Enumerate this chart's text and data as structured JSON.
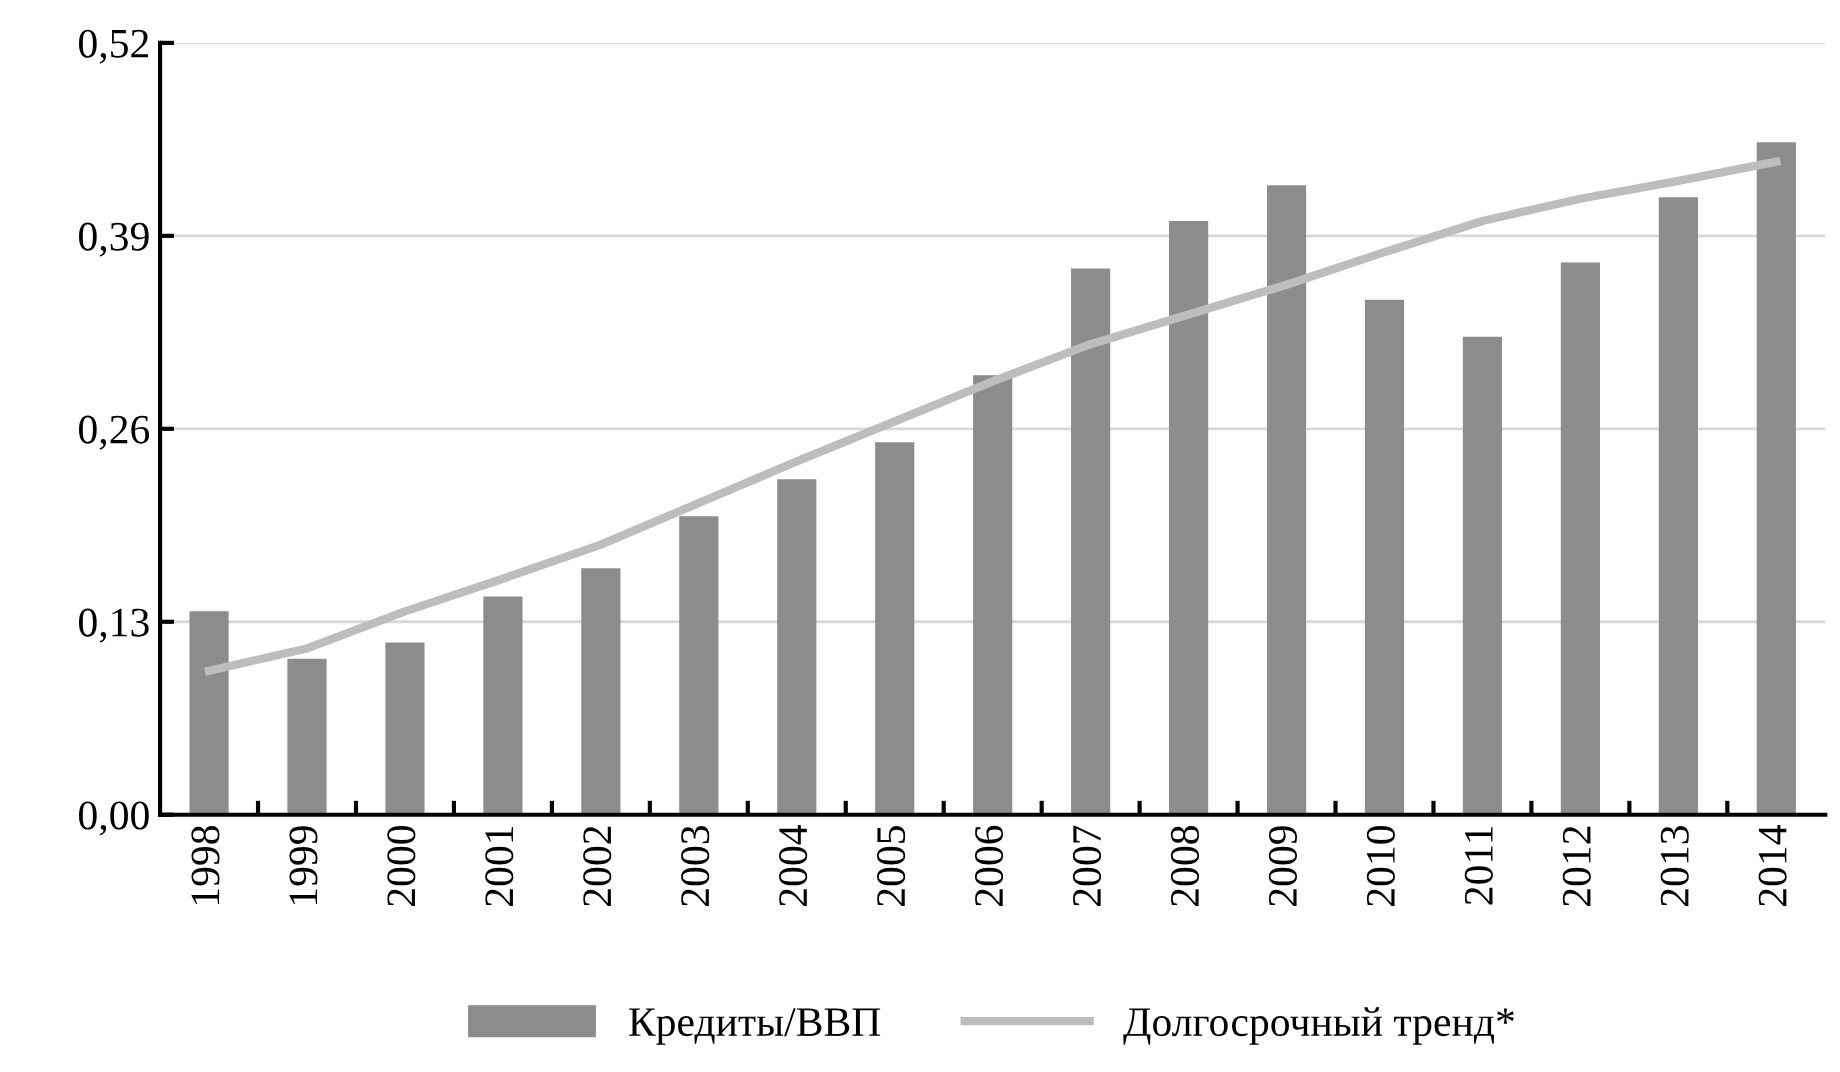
{
  "chart_data": {
    "type": "bar",
    "categories": [
      "1998",
      "1999",
      "2000",
      "2001",
      "2002",
      "2003",
      "2004",
      "2005",
      "2006",
      "2007",
      "2008",
      "2009",
      "2010",
      "2011",
      "2012",
      "2013",
      "2014"
    ],
    "series": [
      {
        "name": "Кредиты/ВВП",
        "color": "#8c8c8c",
        "values": [
          0.137,
          0.105,
          0.116,
          0.147,
          0.166,
          0.201,
          0.226,
          0.251,
          0.296,
          0.368,
          0.4,
          0.424,
          0.347,
          0.322,
          0.372,
          0.416,
          0.453
        ]
      },
      {
        "name": "Долгосрочный тренд*",
        "type": "line",
        "color": "#bdbdbd",
        "values": [
          0.097,
          0.112,
          0.137,
          0.159,
          0.182,
          0.21,
          0.238,
          0.265,
          0.292,
          0.317,
          0.337,
          0.357,
          0.379,
          0.4,
          0.415,
          0.427,
          0.44
        ]
      }
    ],
    "ylim": [
      0,
      0.52
    ],
    "yticks": [
      {
        "value": 0,
        "label": "0,00"
      },
      {
        "value": 0.13,
        "label": "0,13"
      },
      {
        "value": 0.26,
        "label": "0,26"
      },
      {
        "value": 0.39,
        "label": "0,39"
      },
      {
        "value": 0.52,
        "label": "0,52"
      }
    ],
    "grid": "y",
    "legend": "bottom",
    "marker": "none",
    "line_style": "solid"
  }
}
